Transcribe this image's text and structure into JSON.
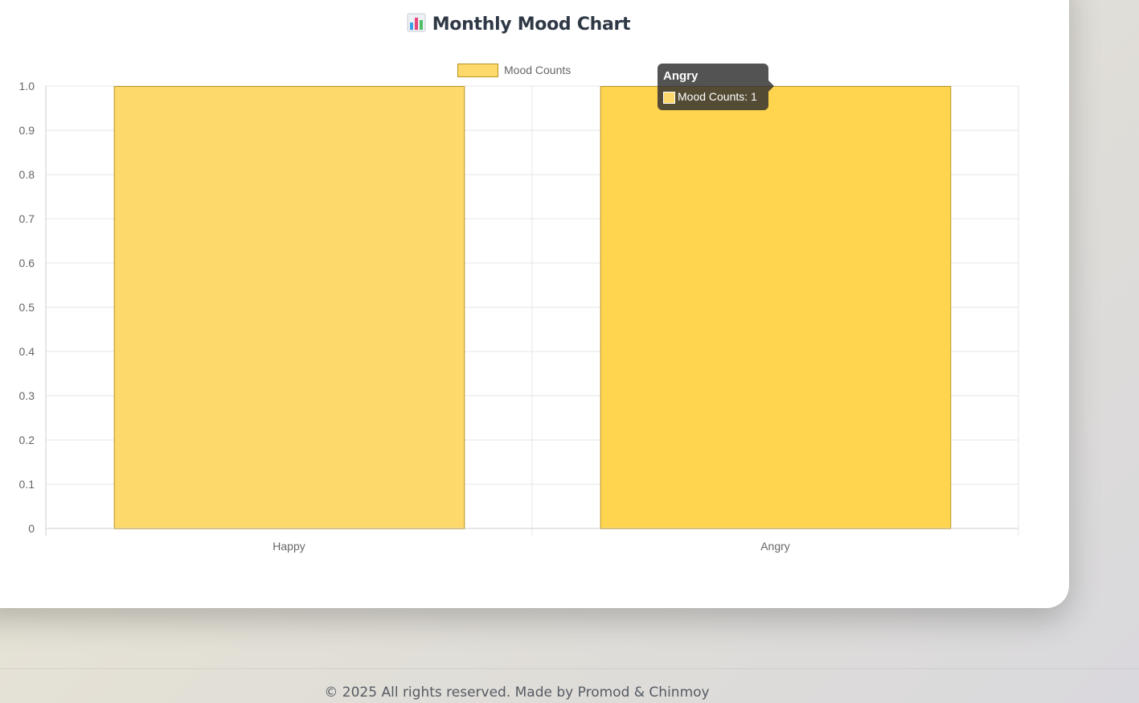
{
  "header": {
    "title": "Monthly Mood Chart",
    "icon": "bar-chart-icon"
  },
  "chart_data": {
    "type": "bar",
    "categories": [
      "Happy",
      "Angry"
    ],
    "series": [
      {
        "name": "Mood Counts",
        "values": [
          1,
          1
        ]
      }
    ],
    "ylim": [
      0,
      1.0
    ],
    "yticks": [
      "0",
      "0.1",
      "0.2",
      "0.3",
      "0.4",
      "0.5",
      "0.6",
      "0.7",
      "0.8",
      "0.9",
      "1.0"
    ],
    "grid": true,
    "legend": "top-center",
    "colors": {
      "bar_fill": "#fdd86a",
      "bar_fill_hover": "#ffd44f",
      "bar_border": "#b8941f",
      "grid": "#e6e6e6",
      "tick_label": "#666666"
    },
    "tooltip": {
      "title": "Angry",
      "label": "Mood Counts: 1"
    }
  },
  "footer": {
    "text": "© 2025 All rights reserved. Made by Promod & Chinmoy"
  }
}
